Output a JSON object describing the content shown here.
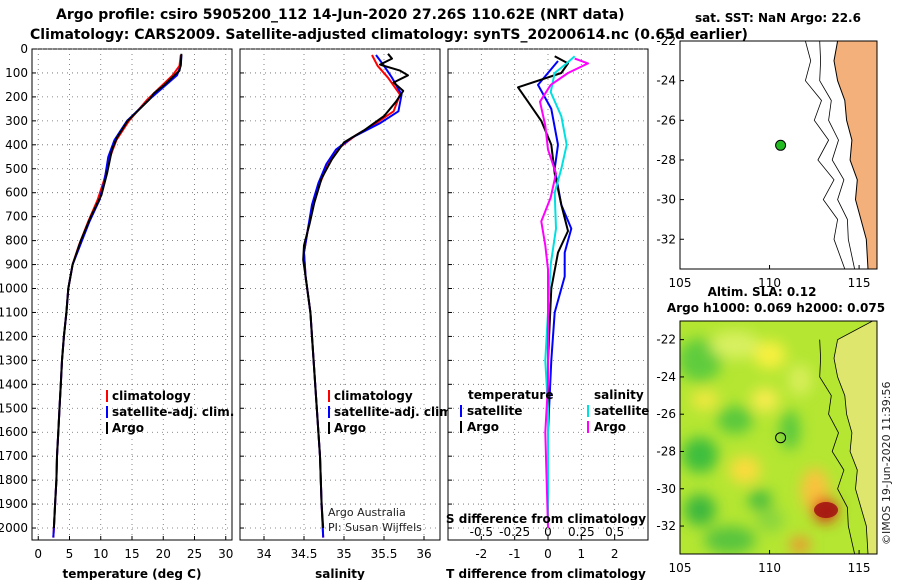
{
  "title_line1": "Argo profile: csiro 5905200_112 14-Jun-2020 27.26S 110.62E (NRT data)",
  "title_line2": "Climatology: CARS2009. Satellite-adjusted climatology: synTS_20200614.nc (0.65d earlier)",
  "credit": "Argo Australia",
  "pi": "PI: Susan Wijffels",
  "stamp": "©IMOS 19-Jun-2020 11:39:56",
  "colors": {
    "clim": "#ff0000",
    "sat": "#0000ff",
    "argo": "#000000",
    "sat_s": "#00e0e0",
    "argo_s": "#ff00ff",
    "land": "#f4b07a"
  },
  "chart_data": [
    {
      "type": "line",
      "title": "",
      "xlabel": "temperature (deg C)",
      "ylabel": "",
      "xlim": [
        -1,
        31
      ],
      "ylim": [
        2050,
        0
      ],
      "xticks": [
        0,
        5,
        10,
        15,
        20,
        25,
        30
      ],
      "yticks": [
        0,
        100,
        200,
        300,
        400,
        500,
        600,
        700,
        800,
        900,
        1000,
        1100,
        1200,
        1300,
        1400,
        1500,
        1600,
        1700,
        1800,
        1900,
        2000
      ],
      "legend": [
        "climatology",
        "satellite-adj. clim.",
        "Argo"
      ],
      "series": [
        {
          "name": "climatology",
          "color": "#ff0000",
          "points": [
            [
              22.8,
              25
            ],
            [
              22.6,
              70
            ],
            [
              21.5,
              110
            ],
            [
              19.5,
              160
            ],
            [
              17.5,
              210
            ],
            [
              14.5,
              300
            ],
            [
              12.5,
              380
            ],
            [
              11.5,
              450
            ],
            [
              10.5,
              550
            ],
            [
              9.5,
              630
            ],
            [
              8,
              720
            ],
            [
              6.5,
              820
            ],
            [
              5.5,
              900
            ],
            [
              4.8,
              1000
            ],
            [
              4.5,
              1100
            ],
            [
              4.1,
              1200
            ],
            [
              3.8,
              1300
            ],
            [
              3.6,
              1400
            ],
            [
              3.4,
              1500
            ],
            [
              3.2,
              1600
            ],
            [
              3.0,
              1700
            ],
            [
              2.9,
              1800
            ],
            [
              2.7,
              1900
            ],
            [
              2.5,
              2000
            ],
            [
              2.4,
              2040
            ]
          ]
        },
        {
          "name": "satellite-adj. clim.",
          "color": "#0000ff",
          "points": [
            [
              22.9,
              25
            ],
            [
              22.8,
              70
            ],
            [
              22.2,
              110
            ],
            [
              20,
              160
            ],
            [
              17.8,
              210
            ],
            [
              14.2,
              300
            ],
            [
              12.2,
              380
            ],
            [
              11.2,
              450
            ],
            [
              10.6,
              550
            ],
            [
              9.8,
              630
            ],
            [
              8.2,
              720
            ],
            [
              6.7,
              820
            ],
            [
              5.5,
              900
            ],
            [
              4.8,
              1000
            ],
            [
              4.5,
              1100
            ],
            [
              4.1,
              1200
            ],
            [
              3.8,
              1300
            ],
            [
              3.6,
              1400
            ],
            [
              3.4,
              1500
            ],
            [
              3.2,
              1600
            ],
            [
              3.0,
              1700
            ],
            [
              2.9,
              1800
            ],
            [
              2.7,
              1900
            ],
            [
              2.5,
              2000
            ],
            [
              2.4,
              2040
            ]
          ]
        },
        {
          "name": "Argo",
          "color": "#000000",
          "points": [
            [
              22.9,
              20
            ],
            [
              22.8,
              60
            ],
            [
              22.6,
              90
            ],
            [
              21.8,
              110
            ],
            [
              20.2,
              150
            ],
            [
              18.5,
              185
            ],
            [
              17.8,
              210
            ],
            [
              14.3,
              300
            ],
            [
              12.6,
              370
            ],
            [
              11.8,
              420
            ],
            [
              11,
              520
            ],
            [
              10.1,
              610
            ],
            [
              8.4,
              700
            ],
            [
              6.8,
              800
            ],
            [
              5.5,
              900
            ],
            [
              4.8,
              1000
            ],
            [
              4.5,
              1100
            ],
            [
              4.1,
              1200
            ],
            [
              3.8,
              1300
            ],
            [
              3.6,
              1400
            ],
            [
              3.4,
              1500
            ],
            [
              3.2,
              1600
            ],
            [
              3.0,
              1700
            ],
            [
              2.9,
              1800
            ],
            [
              2.7,
              1900
            ],
            [
              2.5,
              2000
            ]
          ]
        }
      ]
    },
    {
      "type": "line",
      "title": "",
      "xlabel": "salinity",
      "ylabel": "",
      "xlim": [
        33.7,
        36.2
      ],
      "ylim": [
        2050,
        0
      ],
      "xticks": [
        34,
        34.5,
        35,
        35.5,
        36
      ],
      "xtick_labels": [
        "34",
        "34.5",
        "35",
        "35.5",
        "36"
      ],
      "legend": [
        "climatology",
        "satellite-adj. clim.",
        "Argo"
      ],
      "series": [
        {
          "name": "climatology",
          "color": "#ff0000",
          "points": [
            [
              35.35,
              25
            ],
            [
              35.42,
              70
            ],
            [
              35.55,
              120
            ],
            [
              35.7,
              190
            ],
            [
              35.62,
              260
            ],
            [
              35.4,
              310
            ],
            [
              35.15,
              360
            ],
            [
              34.95,
              410
            ],
            [
              34.8,
              480
            ],
            [
              34.7,
              560
            ],
            [
              34.62,
              650
            ],
            [
              34.55,
              750
            ],
            [
              34.5,
              850
            ],
            [
              34.52,
              950
            ],
            [
              34.58,
              1100
            ],
            [
              34.62,
              1300
            ],
            [
              34.66,
              1500
            ],
            [
              34.7,
              1700
            ],
            [
              34.72,
              1900
            ],
            [
              34.74,
              2040
            ]
          ]
        },
        {
          "name": "satellite-adj. clim.",
          "color": "#0000ff",
          "points": [
            [
              35.4,
              25
            ],
            [
              35.5,
              70
            ],
            [
              35.6,
              120
            ],
            [
              35.72,
              190
            ],
            [
              35.68,
              260
            ],
            [
              35.45,
              310
            ],
            [
              35.1,
              370
            ],
            [
              34.9,
              420
            ],
            [
              34.78,
              480
            ],
            [
              34.68,
              560
            ],
            [
              34.6,
              650
            ],
            [
              34.55,
              750
            ],
            [
              34.5,
              850
            ],
            [
              34.52,
              950
            ],
            [
              34.58,
              1100
            ],
            [
              34.62,
              1300
            ],
            [
              34.66,
              1500
            ],
            [
              34.7,
              1700
            ],
            [
              34.72,
              1900
            ],
            [
              34.74,
              2040
            ]
          ]
        },
        {
          "name": "Argo",
          "color": "#000000",
          "points": [
            [
              35.55,
              20
            ],
            [
              35.6,
              40
            ],
            [
              35.45,
              65
            ],
            [
              35.7,
              90
            ],
            [
              35.8,
              110
            ],
            [
              35.62,
              140
            ],
            [
              35.74,
              175
            ],
            [
              35.65,
              220
            ],
            [
              35.5,
              280
            ],
            [
              35.25,
              340
            ],
            [
              35.0,
              390
            ],
            [
              34.85,
              460
            ],
            [
              34.72,
              540
            ],
            [
              34.63,
              640
            ],
            [
              34.57,
              730
            ],
            [
              34.5,
              820
            ],
            [
              34.49,
              880
            ],
            [
              34.52,
              950
            ],
            [
              34.58,
              1100
            ],
            [
              34.62,
              1300
            ],
            [
              34.66,
              1500
            ],
            [
              34.7,
              1700
            ],
            [
              34.72,
              1900
            ],
            [
              34.74,
              2000
            ]
          ]
        }
      ]
    },
    {
      "type": "line",
      "title": "",
      "xlabel": "T difference from climatology",
      "xlabel2": "S difference from climatology",
      "xlim": [
        -3,
        3
      ],
      "ylim": [
        2050,
        0
      ],
      "xticks": [
        -2,
        -1,
        0,
        1,
        2
      ],
      "s_scale": 0.25,
      "xticks2": [
        -0.5,
        -0.25,
        0,
        0.25,
        0.5
      ],
      "xtick2_labels": [
        "-0.5",
        "-0.25",
        "0",
        "0.25",
        "0.5"
      ],
      "legend_t_title": "temperature",
      "legend_s_title": "salinity",
      "legend_t": [
        "satellite",
        "Argo"
      ],
      "legend_s": [
        "satellite",
        "Argo"
      ],
      "series": [
        {
          "name": "T satellite",
          "color": "#0000ff",
          "points": [
            [
              0.3,
              50
            ],
            [
              -0.3,
              150
            ],
            [
              0.1,
              250
            ],
            [
              0.3,
              400
            ],
            [
              0.2,
              500
            ],
            [
              0.4,
              650
            ],
            [
              0.7,
              750
            ],
            [
              0.5,
              850
            ],
            [
              0.5,
              950
            ],
            [
              0.2,
              1100
            ],
            [
              0.1,
              1300
            ],
            [
              0,
              1600
            ],
            [
              0,
              2000
            ]
          ]
        },
        {
          "name": "T Argo",
          "color": "#000000",
          "points": [
            [
              0.2,
              30
            ],
            [
              0.6,
              60
            ],
            [
              0.4,
              100
            ],
            [
              -0.9,
              160
            ],
            [
              -0.6,
              220
            ],
            [
              -0.2,
              300
            ],
            [
              0.1,
              400
            ],
            [
              0.2,
              520
            ],
            [
              0.4,
              650
            ],
            [
              0.6,
              760
            ],
            [
              0.3,
              850
            ],
            [
              0.1,
              1000
            ],
            [
              0,
              1300
            ],
            [
              0,
              1700
            ],
            [
              0,
              2000
            ]
          ]
        },
        {
          "name": "S satellite",
          "color": "#00e0e0",
          "points": [
            [
              0.2,
              30
            ],
            [
              0.14,
              60
            ],
            [
              0.05,
              100
            ],
            [
              0.02,
              180
            ],
            [
              0.1,
              280
            ],
            [
              0.14,
              400
            ],
            [
              0.1,
              500
            ],
            [
              0.05,
              600
            ],
            [
              0.06,
              750
            ],
            [
              0.02,
              900
            ],
            [
              0.0,
              1100
            ],
            [
              -0.02,
              1300
            ],
            [
              0.0,
              1500
            ],
            [
              0,
              1800
            ],
            [
              0,
              2000
            ]
          ]
        },
        {
          "name": "S Argo",
          "color": "#ff00ff",
          "points": [
            [
              0.2,
              40
            ],
            [
              0.3,
              60
            ],
            [
              0.15,
              100
            ],
            [
              0.02,
              150
            ],
            [
              -0.06,
              220
            ],
            [
              -0.02,
              320
            ],
            [
              0.0,
              420
            ],
            [
              0.06,
              520
            ],
            [
              0.02,
              620
            ],
            [
              -0.05,
              720
            ],
            [
              -0.02,
              820
            ],
            [
              0.0,
              920
            ],
            [
              0.0,
              1100
            ],
            [
              0.0,
              1400
            ],
            [
              -0.02,
              1600
            ],
            [
              0,
              2000
            ]
          ]
        }
      ]
    },
    {
      "type": "map",
      "title": "sat. SST: NaN Argo: 22.6",
      "xlim": [
        105,
        116
      ],
      "ylim": [
        -33.5,
        -22
      ],
      "xticks": [
        105,
        110,
        115
      ],
      "yticks": [
        -22,
        -24,
        -26,
        -28,
        -30,
        -32
      ],
      "argo_position": [
        110.62,
        -27.26
      ],
      "coast": [
        [
          113.8,
          -22
        ],
        [
          113.6,
          -23
        ],
        [
          113.8,
          -24
        ],
        [
          114.2,
          -25
        ],
        [
          114.3,
          -26
        ],
        [
          114.6,
          -27
        ],
        [
          114.5,
          -28
        ],
        [
          114.9,
          -29
        ],
        [
          114.8,
          -30
        ],
        [
          115.1,
          -31
        ],
        [
          115.4,
          -32
        ],
        [
          115.5,
          -33.5
        ]
      ]
    },
    {
      "type": "heatmap",
      "title_line1": "Altim. SLA: 0.12",
      "title_line2": "Argo h1000: 0.069 h2000: 0.075",
      "xlim": [
        105,
        116
      ],
      "ylim": [
        -33.5,
        -21
      ],
      "xticks": [
        105,
        110,
        115
      ],
      "yticks": [
        -22,
        -24,
        -26,
        -28,
        -30,
        -32
      ],
      "argo_position": [
        110.62,
        -27.26
      ]
    }
  ]
}
